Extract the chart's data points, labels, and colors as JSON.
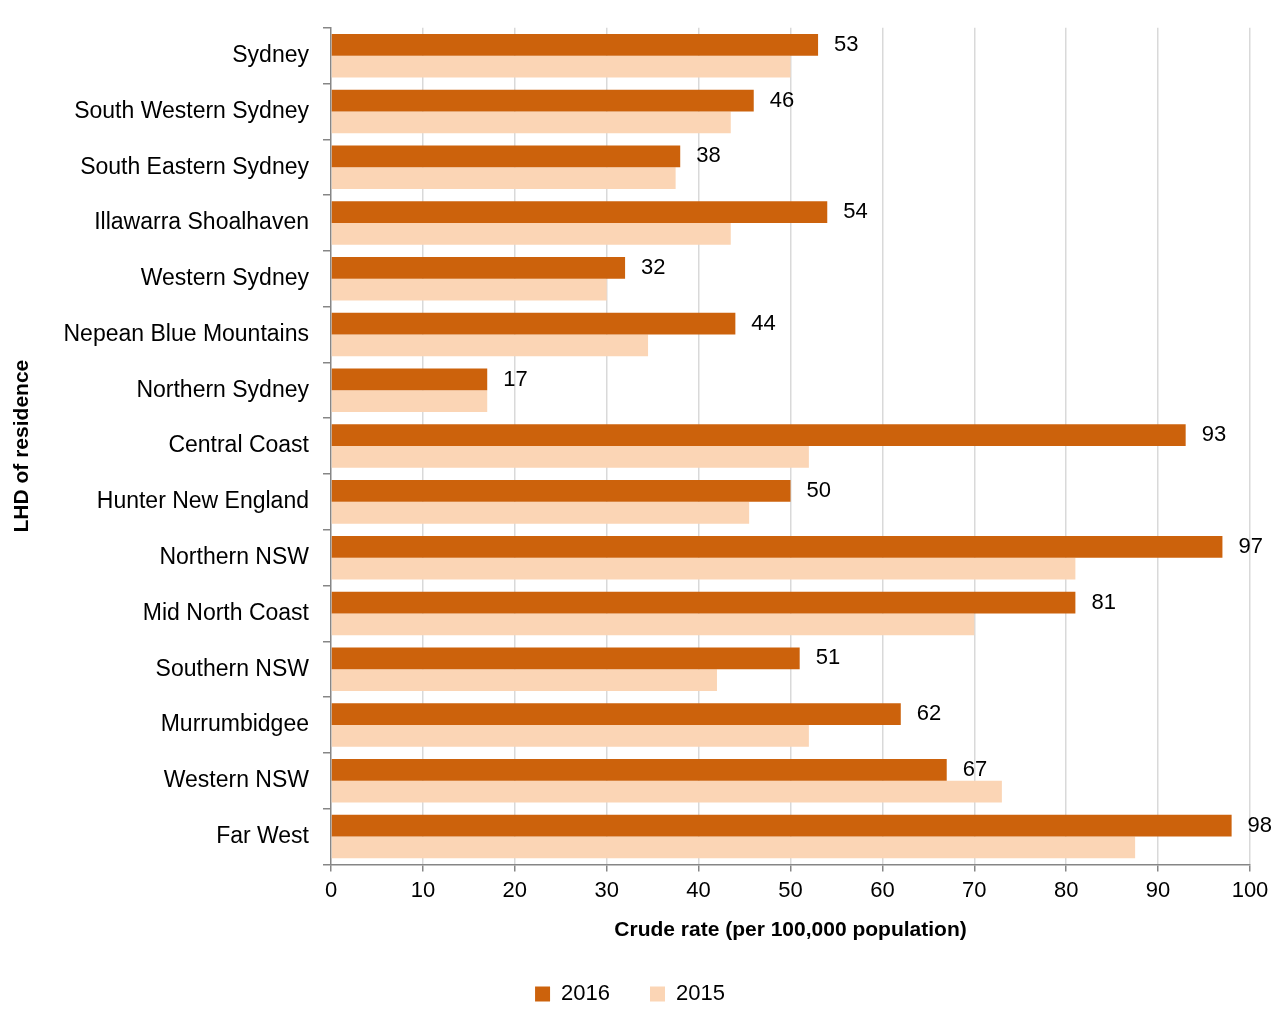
{
  "chart_data": {
    "type": "bar",
    "orientation": "horizontal",
    "categories": [
      "Sydney",
      "South Western Sydney",
      "South Eastern Sydney",
      "Illawarra Shoalhaven",
      "Western Sydney",
      "Nepean Blue Mountains",
      "Northern Sydney",
      "Central Coast",
      "Hunter New England",
      "Northern NSW",
      "Mid North Coast",
      "Southern NSW",
      "Murrumbidgee",
      "Western NSW",
      "Far West"
    ],
    "series": [
      {
        "name": "2016",
        "color": "#cc620c",
        "values": [
          53,
          46,
          38,
          54,
          32,
          44,
          17,
          93,
          50,
          97,
          81,
          51,
          62,
          67,
          98
        ],
        "value_labels": [
          "53",
          "46",
          "38",
          "54",
          "32",
          "44",
          "17",
          "93",
          "50",
          "97",
          "81",
          "51",
          "62",
          "67",
          "98"
        ]
      },
      {
        "name": "2015",
        "color": "#fbd5b5",
        "values": [
          50,
          43.5,
          37.5,
          43.5,
          30,
          34.5,
          17,
          52,
          45.5,
          81,
          70,
          42,
          52,
          73,
          87.5
        ]
      }
    ],
    "xlim": [
      0,
      100
    ],
    "xticks": [
      0,
      10,
      20,
      30,
      40,
      50,
      60,
      70,
      80,
      90,
      100
    ],
    "xlabel": "Crude rate (per 100,000 population)",
    "ylabel": "LHD of residence",
    "grid": "x",
    "legend": "bottom"
  }
}
